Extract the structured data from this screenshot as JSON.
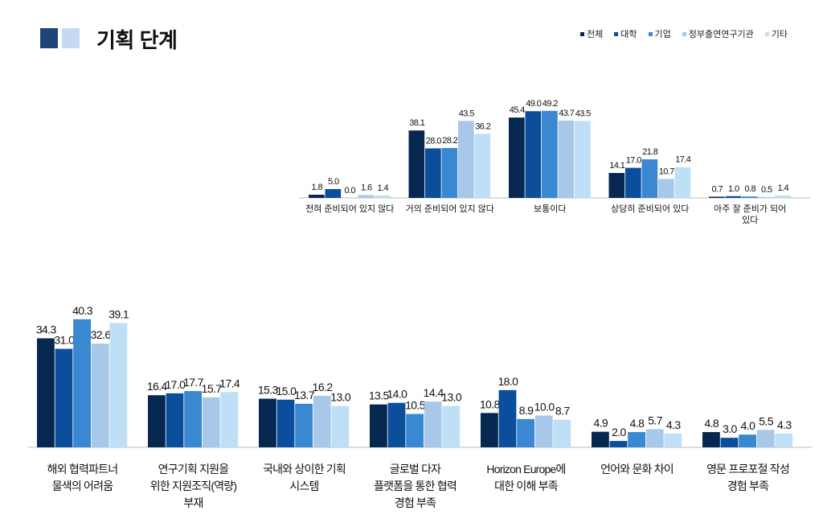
{
  "header": {
    "title": "기획 단계",
    "title_square_colors": [
      "#1f4478",
      "#c5d9f0"
    ]
  },
  "legend": [
    {
      "name": "전체",
      "color": "#062850"
    },
    {
      "name": "대학",
      "color": "#0b4f9c"
    },
    {
      "name": "기업",
      "color": "#3a87d2"
    },
    {
      "name": "정부출연연구기관",
      "color": "#a7c8e8"
    },
    {
      "name": "기타",
      "color": "#bfdff6"
    }
  ],
  "chart_data": [
    {
      "type": "bar",
      "categories": [
        [
          "전혀 준비되어 있지 않다"
        ],
        [
          "거의 준비되어 있지 않다"
        ],
        [
          "보통이다"
        ],
        [
          "상당히 준비되어 있다"
        ],
        [
          "아주 잘 준비가 되어",
          "있다"
        ]
      ],
      "series": [
        {
          "name": "전체",
          "values": [
            1.8,
            38.1,
            45.4,
            14.1,
            0.7
          ]
        },
        {
          "name": "대학",
          "values": [
            5.0,
            28.0,
            49.0,
            17.0,
            1.0
          ]
        },
        {
          "name": "기업",
          "values": [
            0.0,
            28.2,
            49.2,
            21.8,
            0.8
          ]
        },
        {
          "name": "정부출연연구기관",
          "values": [
            1.6,
            43.5,
            43.7,
            10.7,
            0.5
          ]
        },
        {
          "name": "기타",
          "values": [
            1.4,
            36.2,
            43.5,
            17.4,
            1.4
          ]
        }
      ],
      "data_labels": true,
      "grid": false
    },
    {
      "type": "bar",
      "categories": [
        [
          "해외 협력파트너",
          "물색의 어려움"
        ],
        [
          "연구기획 지원을",
          "위한 지원조직(역량)",
          "부재"
        ],
        [
          "국내와 상이한 기획",
          "시스템"
        ],
        [
          "글로벌 다자",
          "플랫폼을 통한 협력",
          "경험 부족"
        ],
        [
          "Horizon Europe에",
          "대한 이해 부족"
        ],
        [
          "언어와 문화 차이"
        ],
        [
          "영문 프로포절 작성",
          "경험 부족"
        ]
      ],
      "series": [
        {
          "name": "전체",
          "values": [
            34.3,
            16.4,
            15.3,
            13.5,
            10.8,
            4.9,
            4.8
          ]
        },
        {
          "name": "대학",
          "values": [
            31.0,
            17.0,
            15.0,
            14.0,
            18.0,
            2.0,
            3.0
          ]
        },
        {
          "name": "기업",
          "values": [
            40.3,
            17.7,
            13.7,
            10.5,
            8.9,
            4.8,
            4.0
          ]
        },
        {
          "name": "정부출연연구기관",
          "values": [
            32.6,
            15.7,
            16.2,
            14.4,
            10.0,
            5.7,
            5.5
          ]
        },
        {
          "name": "기타",
          "values": [
            39.1,
            17.4,
            13.0,
            13.0,
            8.7,
            4.3,
            4.3
          ]
        }
      ],
      "data_labels": true,
      "grid": false
    }
  ]
}
